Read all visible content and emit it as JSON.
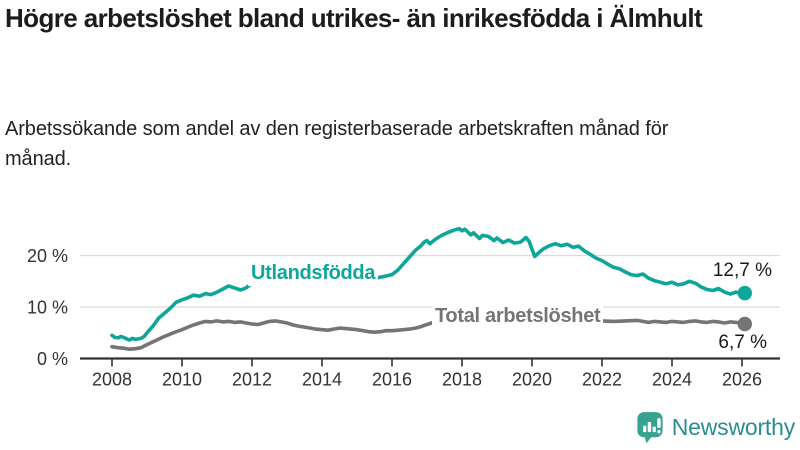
{
  "chart_data": {
    "type": "line",
    "title": "Högre arbetslöshet bland utrikes- än inrikesfödda i Älmhult",
    "subtitle": "Arbetssökande som andel av den registerbaserade arbetskraften månad för månad.",
    "grid": true,
    "legend_position": "inline-on-line",
    "x_axis": {
      "range": [
        2007.1,
        2027.1
      ],
      "ticks": [
        2008,
        2010,
        2012,
        2014,
        2016,
        2018,
        2020,
        2022,
        2024,
        2026
      ]
    },
    "y_axis": {
      "range": [
        0,
        27
      ],
      "ticks": [
        {
          "value": 0,
          "label": "0 %"
        },
        {
          "value": 10,
          "label": "10 %"
        },
        {
          "value": 20,
          "label": "20 %"
        }
      ]
    },
    "series": [
      {
        "name": "Utlandsfödda",
        "color": "#0ea69b",
        "end_label": "12,7 %",
        "end_value": 12.7,
        "points": [
          [
            2008,
            4.5
          ],
          [
            2008.08,
            4.1
          ],
          [
            2008.17,
            4.0
          ],
          [
            2008.25,
            4.3
          ],
          [
            2008.33,
            4.1
          ],
          [
            2008.42,
            3.8
          ],
          [
            2008.5,
            3.6
          ],
          [
            2008.58,
            3.9
          ],
          [
            2008.67,
            3.7
          ],
          [
            2008.75,
            3.8
          ],
          [
            2008.83,
            3.9
          ],
          [
            2008.92,
            4.3
          ],
          [
            2009,
            5.0
          ],
          [
            2009.17,
            6.3
          ],
          [
            2009.33,
            7.8
          ],
          [
            2009.5,
            8.8
          ],
          [
            2009.67,
            9.8
          ],
          [
            2009.83,
            10.9
          ],
          [
            2010,
            11.4
          ],
          [
            2010.17,
            11.8
          ],
          [
            2010.33,
            12.3
          ],
          [
            2010.5,
            12.1
          ],
          [
            2010.67,
            12.6
          ],
          [
            2010.83,
            12.4
          ],
          [
            2011,
            12.9
          ],
          [
            2011.17,
            13.5
          ],
          [
            2011.33,
            14.1
          ],
          [
            2011.5,
            13.7
          ],
          [
            2011.67,
            13.3
          ],
          [
            2011.83,
            13.7
          ],
          [
            2012,
            14.6
          ],
          [
            2012.17,
            15.3
          ],
          [
            2012.33,
            14.9
          ],
          [
            2012.5,
            15.1
          ],
          [
            2012.75,
            15.4
          ],
          [
            2013,
            15.1
          ],
          [
            2013.25,
            15.5
          ],
          [
            2013.5,
            15.2
          ],
          [
            2013.75,
            14.9
          ],
          [
            2014,
            15.1
          ],
          [
            2014.25,
            15.4
          ],
          [
            2014.5,
            15.0
          ],
          [
            2014.75,
            15.2
          ],
          [
            2015,
            15.5
          ],
          [
            2015.25,
            15.3
          ],
          [
            2015.5,
            15.6
          ],
          [
            2015.75,
            15.9
          ],
          [
            2016,
            16.3
          ],
          [
            2016.17,
            17.2
          ],
          [
            2016.33,
            18.4
          ],
          [
            2016.5,
            19.7
          ],
          [
            2016.67,
            21.0
          ],
          [
            2016.83,
            21.9
          ],
          [
            2016.92,
            22.6
          ],
          [
            2017,
            22.9
          ],
          [
            2017.08,
            22.3
          ],
          [
            2017.25,
            23.2
          ],
          [
            2017.42,
            23.9
          ],
          [
            2017.58,
            24.4
          ],
          [
            2017.75,
            24.9
          ],
          [
            2017.92,
            25.2
          ],
          [
            2018,
            24.8
          ],
          [
            2018.08,
            25.1
          ],
          [
            2018.25,
            24.0
          ],
          [
            2018.33,
            24.4
          ],
          [
            2018.5,
            23.3
          ],
          [
            2018.58,
            23.9
          ],
          [
            2018.75,
            23.7
          ],
          [
            2018.92,
            22.9
          ],
          [
            2019,
            23.4
          ],
          [
            2019.17,
            22.5
          ],
          [
            2019.33,
            23.0
          ],
          [
            2019.5,
            22.4
          ],
          [
            2019.67,
            22.6
          ],
          [
            2019.83,
            23.5
          ],
          [
            2019.92,
            22.7
          ],
          [
            2020,
            21.2
          ],
          [
            2020.08,
            19.8
          ],
          [
            2020.17,
            20.4
          ],
          [
            2020.33,
            21.3
          ],
          [
            2020.5,
            21.9
          ],
          [
            2020.67,
            22.3
          ],
          [
            2020.83,
            21.9
          ],
          [
            2021,
            22.2
          ],
          [
            2021.17,
            21.6
          ],
          [
            2021.33,
            21.8
          ],
          [
            2021.5,
            20.9
          ],
          [
            2021.67,
            20.2
          ],
          [
            2021.83,
            19.5
          ],
          [
            2022,
            19.0
          ],
          [
            2022.17,
            18.3
          ],
          [
            2022.33,
            17.7
          ],
          [
            2022.5,
            17.4
          ],
          [
            2022.67,
            16.8
          ],
          [
            2022.83,
            16.3
          ],
          [
            2023,
            16.1
          ],
          [
            2023.17,
            16.4
          ],
          [
            2023.33,
            15.6
          ],
          [
            2023.5,
            15.1
          ],
          [
            2023.67,
            14.8
          ],
          [
            2023.83,
            14.5
          ],
          [
            2024,
            14.8
          ],
          [
            2024.17,
            14.3
          ],
          [
            2024.33,
            14.5
          ],
          [
            2024.5,
            15.0
          ],
          [
            2024.67,
            14.6
          ],
          [
            2024.83,
            13.9
          ],
          [
            2025,
            13.4
          ],
          [
            2025.17,
            13.2
          ],
          [
            2025.33,
            13.6
          ],
          [
            2025.5,
            12.9
          ],
          [
            2025.67,
            12.5
          ],
          [
            2025.83,
            12.9
          ],
          [
            2026,
            12.6
          ],
          [
            2026.08,
            12.7
          ]
        ]
      },
      {
        "name": "Total arbetslöshet",
        "color": "#757575",
        "end_label": "6,7 %",
        "end_value": 6.7,
        "points": [
          [
            2008,
            2.3
          ],
          [
            2008.17,
            2.1
          ],
          [
            2008.33,
            2.0
          ],
          [
            2008.5,
            1.8
          ],
          [
            2008.67,
            1.9
          ],
          [
            2008.83,
            2.1
          ],
          [
            2009,
            2.7
          ],
          [
            2009.25,
            3.5
          ],
          [
            2009.5,
            4.3
          ],
          [
            2009.75,
            5.0
          ],
          [
            2010,
            5.6
          ],
          [
            2010.17,
            6.1
          ],
          [
            2010.33,
            6.5
          ],
          [
            2010.5,
            6.9
          ],
          [
            2010.67,
            7.2
          ],
          [
            2010.83,
            7.1
          ],
          [
            2011,
            7.3
          ],
          [
            2011.17,
            7.1
          ],
          [
            2011.33,
            7.2
          ],
          [
            2011.5,
            7.0
          ],
          [
            2011.67,
            7.1
          ],
          [
            2011.83,
            6.9
          ],
          [
            2012,
            6.7
          ],
          [
            2012.17,
            6.6
          ],
          [
            2012.33,
            6.9
          ],
          [
            2012.5,
            7.2
          ],
          [
            2012.67,
            7.3
          ],
          [
            2012.83,
            7.1
          ],
          [
            2013,
            6.9
          ],
          [
            2013.17,
            6.5
          ],
          [
            2013.33,
            6.3
          ],
          [
            2013.5,
            6.1
          ],
          [
            2013.67,
            5.9
          ],
          [
            2013.83,
            5.7
          ],
          [
            2014,
            5.6
          ],
          [
            2014.17,
            5.5
          ],
          [
            2014.33,
            5.7
          ],
          [
            2014.5,
            5.9
          ],
          [
            2014.67,
            5.8
          ],
          [
            2014.83,
            5.7
          ],
          [
            2015,
            5.6
          ],
          [
            2015.17,
            5.4
          ],
          [
            2015.33,
            5.2
          ],
          [
            2015.5,
            5.1
          ],
          [
            2015.67,
            5.2
          ],
          [
            2015.83,
            5.4
          ],
          [
            2016,
            5.4
          ],
          [
            2016.17,
            5.5
          ],
          [
            2016.33,
            5.6
          ],
          [
            2016.5,
            5.7
          ],
          [
            2016.67,
            5.9
          ],
          [
            2016.83,
            6.2
          ],
          [
            2017,
            6.6
          ],
          [
            2017.17,
            7.0
          ],
          [
            2017.33,
            7.4
          ],
          [
            2017.5,
            7.5
          ],
          [
            2017.75,
            7.5
          ],
          [
            2018,
            7.4
          ],
          [
            2018.5,
            7.5
          ],
          [
            2019,
            7.4
          ],
          [
            2019.5,
            7.3
          ],
          [
            2020,
            7.5
          ],
          [
            2020.5,
            7.6
          ],
          [
            2021,
            7.5
          ],
          [
            2021.5,
            7.4
          ],
          [
            2022,
            7.3
          ],
          [
            2022.33,
            7.2
          ],
          [
            2022.67,
            7.3
          ],
          [
            2023,
            7.4
          ],
          [
            2023.17,
            7.2
          ],
          [
            2023.33,
            7.0
          ],
          [
            2023.5,
            7.2
          ],
          [
            2023.67,
            7.1
          ],
          [
            2023.83,
            7.0
          ],
          [
            2024,
            7.2
          ],
          [
            2024.17,
            7.1
          ],
          [
            2024.33,
            7.0
          ],
          [
            2024.5,
            7.2
          ],
          [
            2024.67,
            7.3
          ],
          [
            2024.83,
            7.1
          ],
          [
            2025,
            7.0
          ],
          [
            2025.17,
            7.2
          ],
          [
            2025.33,
            7.1
          ],
          [
            2025.5,
            6.9
          ],
          [
            2025.67,
            7.1
          ],
          [
            2025.83,
            7.0
          ],
          [
            2026,
            6.9
          ],
          [
            2026.08,
            6.7
          ]
        ]
      }
    ],
    "style": {
      "grid_color": "#dcdcdc",
      "axis_color": "#333333",
      "tick_label_color": "#333333"
    }
  },
  "branding": {
    "name": "Newsworthy",
    "icon": "newsworthy-speech-bubble-barchart-icon",
    "icon_color": "#38a291",
    "text_color": "#2b8c92"
  }
}
